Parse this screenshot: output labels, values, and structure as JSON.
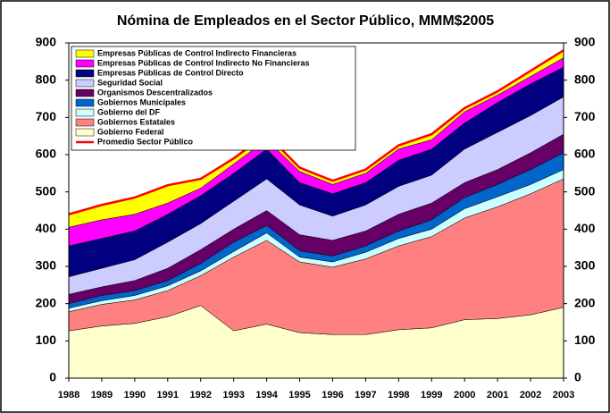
{
  "chart_data": {
    "type": "stacked_area",
    "title": "Nómina de Empleados en el Sector Público, MMM$2005",
    "categories": [
      "1988",
      "1989",
      "1990",
      "1991",
      "1992",
      "1993",
      "1994",
      "1995",
      "1996",
      "1997",
      "1998",
      "1999",
      "2000",
      "2001",
      "2002",
      "2003"
    ],
    "series": [
      {
        "name": "Gobierno Federal",
        "color": "#ffffcc",
        "values": [
          127,
          140,
          147,
          165,
          195,
          127,
          145,
          122,
          117,
          117,
          130,
          135,
          157,
          160,
          170,
          190
        ]
      },
      {
        "name": "Gobiernos Estatales",
        "color": "#ff8080",
        "values": [
          51,
          58,
          63,
          70,
          80,
          198,
          225,
          190,
          181,
          203,
          225,
          245,
          273,
          300,
          325,
          345
        ]
      },
      {
        "name": "Gobierno del DF",
        "color": "#ccffff",
        "values": [
          10,
          10,
          12,
          13,
          13,
          15,
          20,
          13,
          14,
          18,
          20,
          20,
          25,
          27,
          25,
          25
        ]
      },
      {
        "name": "Gobiernos Municipales",
        "color": "#0066cc",
        "values": [
          12,
          14,
          13,
          14,
          20,
          25,
          20,
          17,
          16,
          17,
          20,
          25,
          30,
          33,
          40,
          45
        ]
      },
      {
        "name": "Organismos Descentralizados",
        "color": "#660066",
        "values": [
          25,
          23,
          27,
          33,
          37,
          35,
          40,
          43,
          42,
          40,
          45,
          45,
          40,
          40,
          45,
          50
        ]
      },
      {
        "name": "Seguridad Social",
        "color": "#ccccff",
        "values": [
          47,
          50,
          56,
          70,
          70,
          75,
          85,
          80,
          65,
          70,
          75,
          75,
          90,
          100,
          100,
          100
        ]
      },
      {
        "name": "Empresas Públicas de Control Directo",
        "color": "#000080",
        "values": [
          83,
          80,
          77,
          75,
          75,
          75,
          80,
          60,
          60,
          60,
          70,
          70,
          70,
          80,
          85,
          80
        ]
      },
      {
        "name": "Empresas Públicas de Control Indirecto No Financieras",
        "color": "#ff00ff",
        "values": [
          50,
          50,
          45,
          30,
          20,
          25,
          25,
          30,
          25,
          25,
          30,
          25,
          30,
          20,
          20,
          25
        ]
      },
      {
        "name": "Empresas Públicas de Control Indirecto Financieras",
        "color": "#ffff00",
        "values": [
          35,
          40,
          45,
          48,
          25,
          15,
          15,
          10,
          10,
          10,
          10,
          15,
          10,
          10,
          15,
          20
        ]
      }
    ],
    "line": {
      "name": "Promedio Sector Público",
      "color": "#ff0000",
      "values": [
        440,
        465,
        485,
        518,
        535,
        590,
        655,
        565,
        530,
        560,
        625,
        655,
        725,
        770,
        825,
        880
      ]
    },
    "ylim": [
      0,
      900
    ],
    "yticks": [
      0,
      100,
      200,
      300,
      400,
      500,
      600,
      700,
      800,
      900
    ],
    "y2lim": [
      0,
      900
    ],
    "y2ticks": [
      0,
      100,
      200,
      300,
      400,
      500,
      600,
      700,
      800,
      900
    ]
  }
}
